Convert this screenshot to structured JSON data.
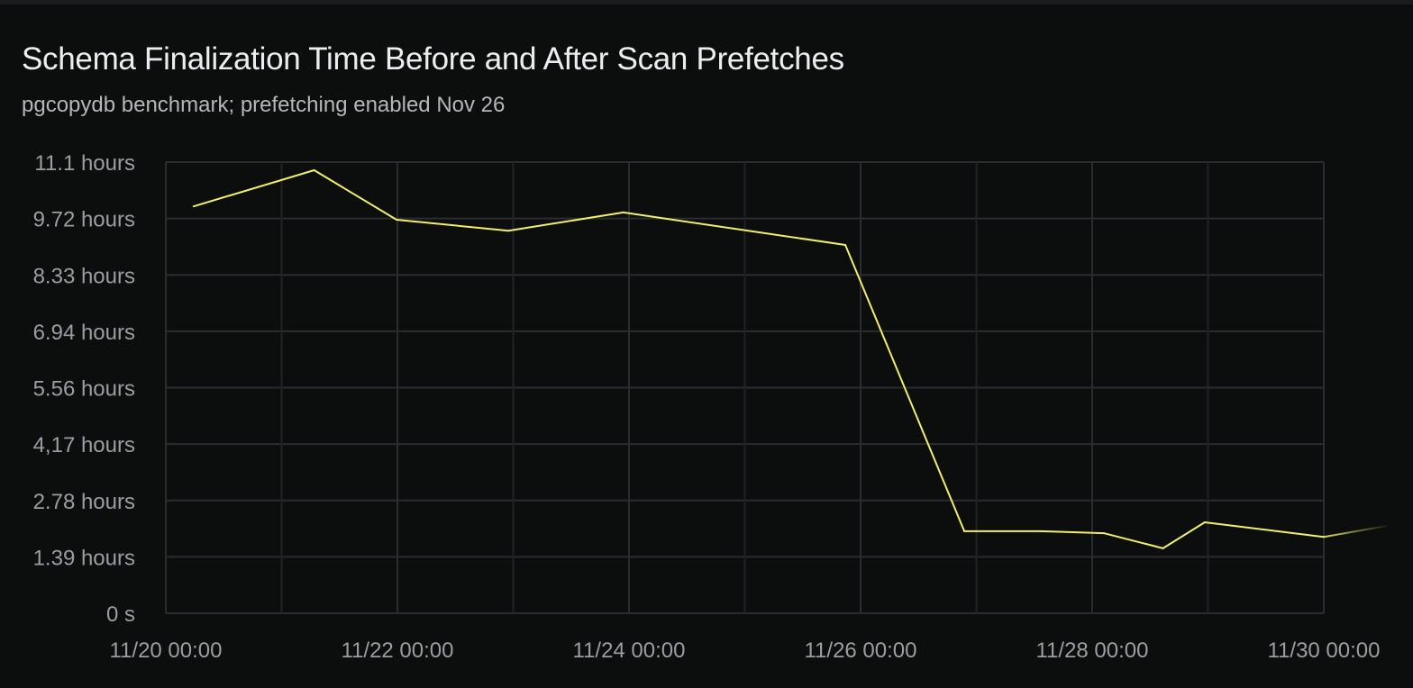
{
  "chart_data": {
    "type": "line",
    "title": "Schema Finalization Time Before and After Scan Prefetches",
    "subtitle": "pgcopydb benchmark; prefetching enabled Nov 26",
    "xlabel": "",
    "ylabel": "",
    "x_tick_labels": [
      "11/20 00:00",
      "11/22 00:00",
      "11/24 00:00",
      "11/26 00:00",
      "11/28 00:00",
      "11/30 00:00"
    ],
    "xlim": [
      "11/20 00:00",
      "11/30 13:00"
    ],
    "y_tick_labels": [
      "0 s",
      "1.39 hours",
      "2.78 hours",
      "4,17 hours",
      "5.56 hours",
      "6.94 hours",
      "8.33 hours",
      "9.72 hours",
      "11.1 hours"
    ],
    "y_unit": "hours",
    "ylim": [
      0,
      11.11
    ],
    "grid": true,
    "legend": "none",
    "series": [
      {
        "color": "#f2ee6b",
        "points": [
          {
            "x": "11/20 05:45",
            "y": 10.02
          },
          {
            "x": "11/21 06:45",
            "y": 10.91
          },
          {
            "x": "11/21 23:50",
            "y": 9.69
          },
          {
            "x": "11/22 23:00",
            "y": 9.42
          },
          {
            "x": "11/23 22:50",
            "y": 9.87
          },
          {
            "x": "11/25 20:50",
            "y": 9.07
          },
          {
            "x": "11/26 21:30",
            "y": 2.02
          },
          {
            "x": "11/27 13:25",
            "y": 2.02
          },
          {
            "x": "11/28 02:30",
            "y": 1.97
          },
          {
            "x": "11/28 14:40",
            "y": 1.6
          },
          {
            "x": "11/28 23:20",
            "y": 2.24
          },
          {
            "x": "11/30 00:00",
            "y": 1.88
          },
          {
            "x": "11/30 13:00",
            "y": 2.15
          }
        ]
      }
    ]
  }
}
